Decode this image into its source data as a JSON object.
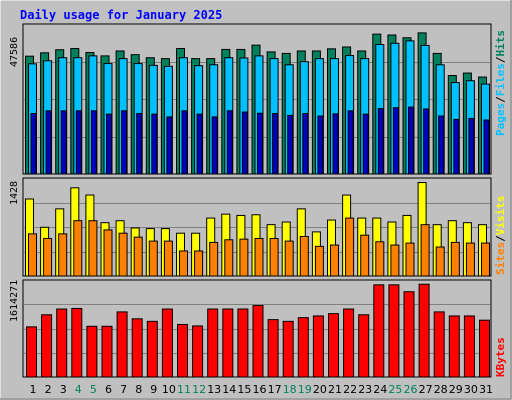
{
  "title": "Daily usage for January 2025",
  "colors": {
    "background": "#c0c0c0",
    "panel": "#c0c0c0",
    "title": "#0000ff",
    "hits": "#00805c",
    "files": "#00c0ff",
    "pages": "#0000c0",
    "visits": "#ffff00",
    "sites": "#ff8000",
    "kbytes": "#ff0000",
    "day_weekday": "#000000",
    "day_weekend": "#00805c"
  },
  "legend_hits_files_pages": [
    {
      "key": "pages",
      "label": "Pages"
    },
    {
      "key": "files",
      "label": "Files"
    },
    {
      "key": "hits",
      "label": "Hits"
    }
  ],
  "legend_sites_visits": [
    {
      "key": "sites",
      "label": "Sites"
    },
    {
      "key": "visits",
      "label": "Visits"
    }
  ],
  "legend_kbytes": [
    {
      "key": "kbytes",
      "label": "KBytes"
    }
  ],
  "chart_data": [
    {
      "type": "bar",
      "name": "hits-files-pages",
      "x": [
        1,
        2,
        3,
        4,
        5,
        6,
        7,
        8,
        9,
        10,
        11,
        12,
        13,
        14,
        15,
        16,
        17,
        18,
        19,
        20,
        21,
        22,
        23,
        24,
        25,
        26,
        27,
        28,
        29,
        30,
        31
      ],
      "weekend_days": [
        4,
        5,
        11,
        12,
        18,
        19,
        25,
        26
      ],
      "ymax_label": "47586",
      "ylim": [
        0,
        47586
      ],
      "series": [
        {
          "key": "hits",
          "values": [
            38400,
            39500,
            40500,
            40900,
            39600,
            38500,
            40100,
            38900,
            37900,
            37600,
            40900,
            37600,
            37600,
            40600,
            40600,
            42000,
            39800,
            39300,
            40100,
            40100,
            40800,
            41400,
            40100,
            45600,
            45300,
            44400,
            46000,
            39300,
            32100,
            32900,
            31600
          ]
        },
        {
          "key": "files",
          "values": [
            35900,
            36900,
            37900,
            37900,
            38500,
            36000,
            37600,
            36000,
            35400,
            35100,
            37900,
            35300,
            35600,
            37900,
            37800,
            38500,
            37600,
            35600,
            36600,
            37600,
            37600,
            38600,
            37600,
            42200,
            42600,
            43400,
            41900,
            35600,
            29800,
            30400,
            29300
          ]
        },
        {
          "key": "pages",
          "values": [
            19700,
            20600,
            20600,
            20600,
            20600,
            19500,
            20600,
            19700,
            19500,
            18600,
            20600,
            19500,
            18600,
            20600,
            20200,
            19800,
            19700,
            19100,
            19700,
            18900,
            19600,
            20600,
            19500,
            21300,
            21600,
            21800,
            21200,
            18900,
            17800,
            18100,
            17600
          ]
        }
      ]
    },
    {
      "type": "bar",
      "name": "sites-visits",
      "x": [
        1,
        2,
        3,
        4,
        5,
        6,
        7,
        8,
        9,
        10,
        11,
        12,
        13,
        14,
        15,
        16,
        17,
        18,
        19,
        20,
        21,
        22,
        23,
        24,
        25,
        26,
        27,
        28,
        29,
        30,
        31
      ],
      "weekend_days": [
        4,
        5,
        11,
        12,
        18,
        19,
        25,
        26
      ],
      "ymax_label": "1428",
      "ylim": [
        0,
        1428
      ],
      "series": [
        {
          "key": "visits",
          "values": [
            1170,
            740,
            1020,
            1340,
            1230,
            810,
            840,
            730,
            720,
            720,
            650,
            650,
            880,
            940,
            920,
            930,
            780,
            820,
            1020,
            670,
            850,
            1230,
            880,
            880,
            820,
            920,
            1420,
            780,
            840,
            810,
            780
          ]
        },
        {
          "key": "sites",
          "values": [
            640,
            570,
            640,
            840,
            840,
            700,
            650,
            590,
            530,
            530,
            380,
            380,
            510,
            550,
            560,
            570,
            570,
            530,
            600,
            450,
            470,
            880,
            620,
            520,
            470,
            500,
            780,
            440,
            510,
            500,
            500
          ]
        }
      ]
    },
    {
      "type": "bar",
      "name": "kbytes",
      "x": [
        1,
        2,
        3,
        4,
        5,
        6,
        7,
        8,
        9,
        10,
        11,
        12,
        13,
        14,
        15,
        16,
        17,
        18,
        19,
        20,
        21,
        22,
        23,
        24,
        25,
        26,
        27,
        28,
        29,
        30,
        31
      ],
      "weekend_days": [
        4,
        5,
        11,
        12,
        18,
        19,
        25,
        26
      ],
      "ymax_label": "1614271",
      "ylim": [
        0,
        1614271
      ],
      "series": [
        {
          "key": "kbytes",
          "values": [
            870000,
            1080000,
            1180000,
            1190000,
            880000,
            880000,
            1130000,
            1010000,
            966000,
            1180000,
            912000,
            886000,
            1180000,
            1180000,
            1180000,
            1240000,
            996000,
            966000,
            1030000,
            1060000,
            1100000,
            1180000,
            1080000,
            1600000,
            1600000,
            1480000,
            1610000,
            1130000,
            1060000,
            1060000,
            986000
          ]
        }
      ]
    }
  ]
}
